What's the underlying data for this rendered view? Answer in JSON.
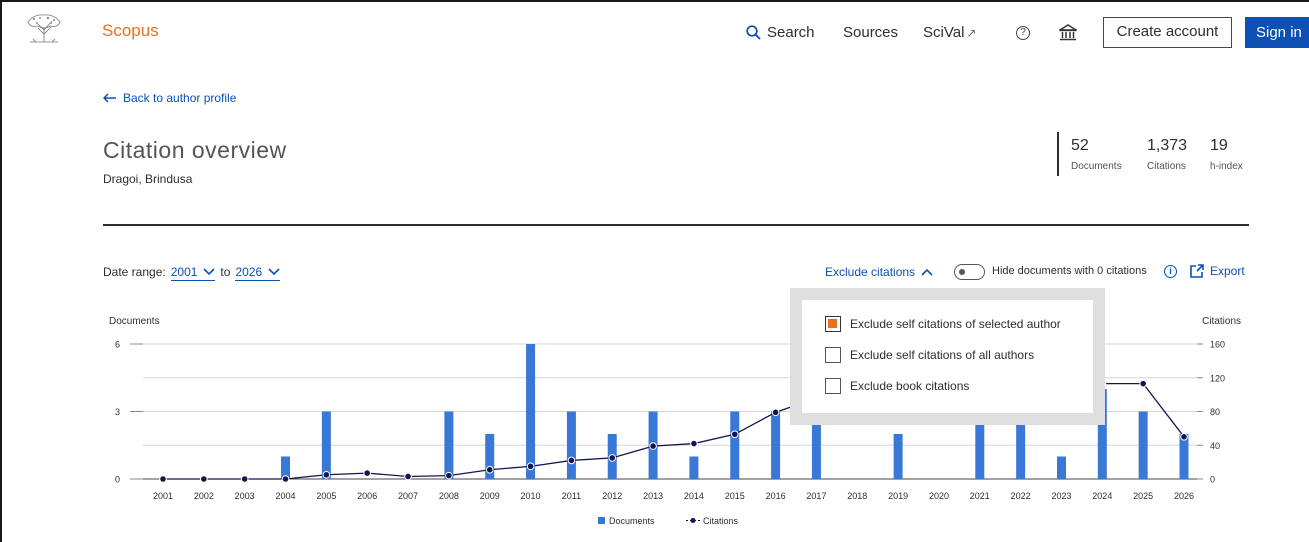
{
  "header": {
    "brand": "Scopus",
    "nav": {
      "search": "Search",
      "sources": "Sources",
      "scival": "SciVal",
      "scival_ext": "↗"
    },
    "help_glyph": "?",
    "create_account": "Create account",
    "sign_in": "Sign in",
    "icons": [
      "elsevier-tree-logo",
      "search-icon",
      "external-link-icon",
      "help-icon",
      "institution-icon"
    ]
  },
  "page": {
    "back_link": "Back to author profile",
    "title": "Citation overview",
    "author": "Dragoi, Brindusa"
  },
  "metrics": {
    "documents": {
      "value": "52",
      "label": "Documents"
    },
    "citations": {
      "value": "1,373",
      "label": "Citations"
    },
    "h_index": {
      "value": "19",
      "label": "h-index"
    }
  },
  "controls": {
    "date_range_label": "Date range:",
    "from": "2001",
    "to_word": "to",
    "to": "2026",
    "exclude_citations": "Exclude citations",
    "hide_zero_label": "Hide documents with 0 citations",
    "hide_zero_on": false,
    "info_glyph": "i",
    "export": "Export"
  },
  "dropdown": {
    "options": [
      {
        "label": "Exclude self citations of selected author",
        "checked": true
      },
      {
        "label": "Exclude self citations of all authors",
        "checked": false
      },
      {
        "label": "Exclude book citations",
        "checked": false
      }
    ]
  },
  "colors": {
    "brand_orange": "#e9711c",
    "link_blue": "#0c50b4",
    "bar_blue": "#3a78d8",
    "line_navy": "#14174f"
  },
  "chart_data": {
    "type": "bar",
    "categories": [
      "2001",
      "2002",
      "2003",
      "2004",
      "2005",
      "2006",
      "2007",
      "2008",
      "2009",
      "2010",
      "2011",
      "2012",
      "2013",
      "2014",
      "2015",
      "2016",
      "2017",
      "2018",
      "2019",
      "2020",
      "2021",
      "2022",
      "2023",
      "2024",
      "2025",
      "2026"
    ],
    "series": [
      {
        "name": "Documents",
        "type": "bar",
        "axis": "left",
        "values": [
          0,
          0,
          0,
          1,
          3,
          0,
          0,
          3,
          2,
          6,
          3,
          2,
          3,
          1,
          3,
          3,
          3,
          0,
          2,
          0,
          3,
          3,
          1,
          4,
          3,
          2
        ]
      },
      {
        "name": "Citations",
        "type": "line",
        "axis": "right",
        "values": [
          0,
          0,
          0,
          0,
          5,
          7,
          3,
          4,
          11,
          15,
          22,
          25,
          39,
          42,
          53,
          79,
          96,
          null,
          null,
          null,
          null,
          null,
          null,
          113,
          113,
          50
        ]
      }
    ],
    "y_left": {
      "label": "Documents",
      "ticks": [
        "0",
        "3",
        "6"
      ],
      "range": [
        0,
        6
      ]
    },
    "y_right": {
      "label": "Citations",
      "ticks": [
        "0",
        "40",
        "80",
        "120",
        "160"
      ],
      "range": [
        0,
        160
      ]
    },
    "legend": [
      "Documents",
      "Citations"
    ],
    "legend_position": "bottom",
    "grid": true
  }
}
